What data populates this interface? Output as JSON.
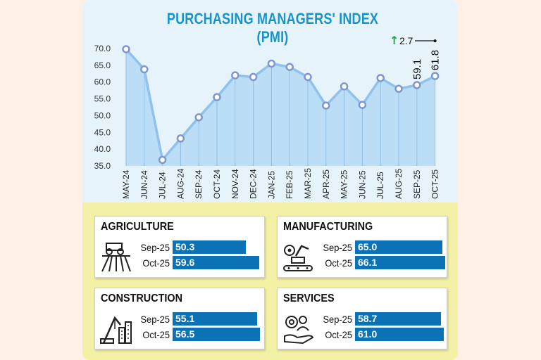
{
  "chart_data": {
    "type": "line",
    "title": "PURCHASING MANAGERS' INDEX (PMI)",
    "categories": [
      "MAY-24",
      "JUN-24",
      "JUL-24",
      "AUG-24",
      "SEP-24",
      "OCT-24",
      "NOV-24",
      "DEC-24",
      "JAN-25",
      "FEB-25",
      "MAR-25",
      "APR-25",
      "MAY-25",
      "JUN-25",
      "JUL-25",
      "AUG-25",
      "SEP-25",
      "OCT-25"
    ],
    "values": [
      69.8,
      63.8,
      36.8,
      43.2,
      49.5,
      55.5,
      62.0,
      61.5,
      65.5,
      64.5,
      61.5,
      53.0,
      58.7,
      53.2,
      61.2,
      58.0,
      59.1,
      61.8
    ],
    "yticks": [
      "70.0",
      "65.0",
      "60.0",
      "55.0",
      "50.0",
      "45.0",
      "40.0",
      "35.0"
    ],
    "ylim": [
      35,
      70
    ],
    "xlabel": "",
    "ylabel": "",
    "labels": {
      "sep": "59.1",
      "oct": "61.8"
    },
    "change": {
      "arrow": "↑",
      "value": "2.7"
    },
    "colors": {
      "line": "#8fc2ec",
      "fill": "#b3d9f4",
      "marker": "#7f97d0",
      "title": "#1795c9",
      "arrow": "#1aa34a"
    }
  },
  "sectors": [
    {
      "name": "AGRICULTURE",
      "icon": "tractor-icon",
      "rows": [
        {
          "label": "Sep-25",
          "value": "50.3"
        },
        {
          "label": "Oct-25",
          "value": "59.6"
        }
      ]
    },
    {
      "name": "MANUFACTURING",
      "icon": "factory-robot-icon",
      "rows": [
        {
          "label": "Sep-25",
          "value": "65.0"
        },
        {
          "label": "Oct-25",
          "value": "66.1"
        }
      ]
    },
    {
      "name": "CONSTRUCTION",
      "icon": "crane-icon",
      "rows": [
        {
          "label": "Sep-25",
          "value": "55.1"
        },
        {
          "label": "Oct-25",
          "value": "56.5"
        }
      ]
    },
    {
      "name": "SERVICES",
      "icon": "service-hand-icon",
      "rows": [
        {
          "label": "Sep-25",
          "value": "58.7"
        },
        {
          "label": "Oct-25",
          "value": "61.0"
        }
      ]
    }
  ],
  "bar_color": "#0b72b5"
}
